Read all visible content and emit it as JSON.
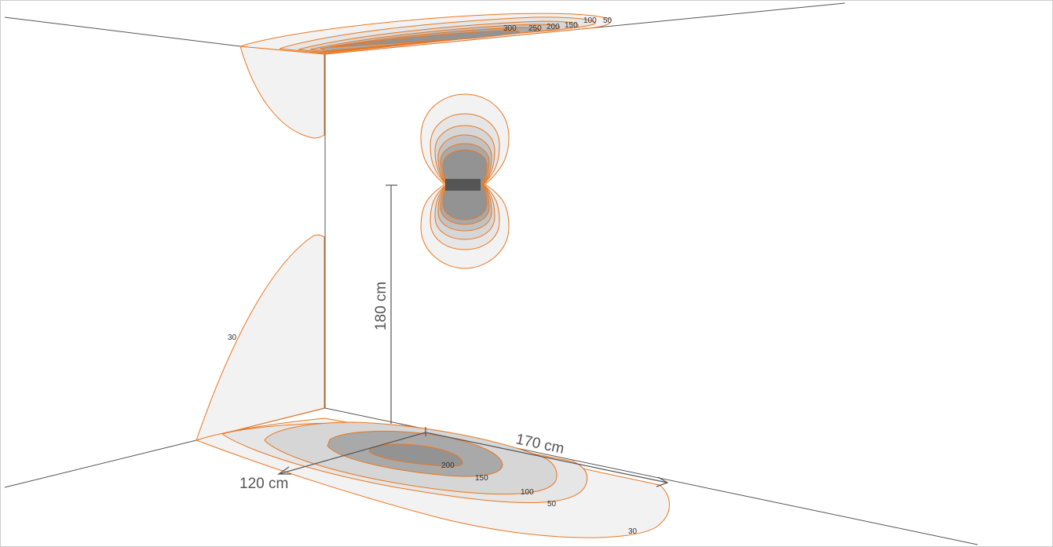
{
  "colors": {
    "background": "#ffffff",
    "frame": "#cccccc",
    "room_line": "#555555",
    "contour_stroke": "#e87722",
    "fill_30": "#f2f2f2",
    "fill_50": "#e6e6e6",
    "fill_100": "#d6d6d6",
    "fill_150": "#c2c2c2",
    "fill_200": "#a9a9a9",
    "fill_core": "#939393",
    "lamp": "#555555",
    "dim_line": "#555555"
  },
  "ceiling_labels": [
    "300",
    "250",
    "200",
    "150",
    "100",
    "50"
  ],
  "floor_labels": [
    "200",
    "150",
    "100",
    "50",
    "30"
  ],
  "wall_label": "30",
  "dimensions": {
    "height": "180 cm",
    "depth": "120 cm",
    "width": "170 cm"
  }
}
